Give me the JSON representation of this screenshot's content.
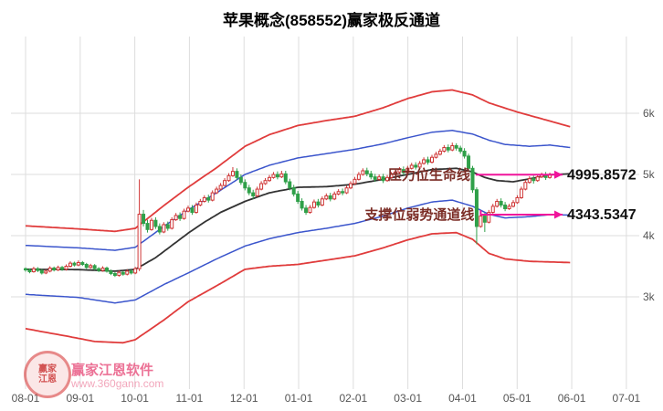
{
  "title": "苹果概念(858552)赢家极反通道",
  "watermark": {
    "brand": "赢家江恩软件",
    "url": "www.360gann.com",
    "logo_line1": "赢家",
    "logo_line2": "江恩"
  },
  "chart_data": {
    "type": "candlestick",
    "title": "苹果概念(858552)赢家极反通道",
    "xlabel": "",
    "ylabel": "",
    "ylim": [
      2250,
      6450
    ],
    "x_ticks": [
      "08-01",
      "09-01",
      "10-01",
      "11-01",
      "12-01",
      "01-01",
      "02-01",
      "03-01",
      "04-01",
      "05-01",
      "06-01",
      "07-01"
    ],
    "y_ticks": [
      {
        "label": "3k",
        "value": 3000
      },
      {
        "label": "4k",
        "value": 4000
      },
      {
        "label": "5k",
        "value": 5000
      },
      {
        "label": "6k",
        "value": 6000
      }
    ],
    "candles_per_month": 13.44,
    "colors": {
      "up": "#cf3535",
      "down": "#2fa049",
      "grid": "#dddddd",
      "axis_text": "#555555"
    },
    "candles": [
      [
        3460,
        3480,
        3410,
        3440
      ],
      [
        3440,
        3465,
        3385,
        3410
      ],
      [
        3410,
        3490,
        3395,
        3460
      ],
      [
        3460,
        3485,
        3405,
        3430
      ],
      [
        3430,
        3455,
        3365,
        3390
      ],
      [
        3390,
        3450,
        3370,
        3420
      ],
      [
        3420,
        3500,
        3400,
        3470
      ],
      [
        3470,
        3495,
        3415,
        3440
      ],
      [
        3440,
        3510,
        3420,
        3480
      ],
      [
        3480,
        3505,
        3425,
        3450
      ],
      [
        3450,
        3530,
        3430,
        3500
      ],
      [
        3500,
        3580,
        3480,
        3550
      ],
      [
        3550,
        3575,
        3495,
        3520
      ],
      [
        3520,
        3595,
        3500,
        3560
      ],
      [
        3560,
        3585,
        3505,
        3530
      ],
      [
        3530,
        3555,
        3455,
        3480
      ],
      [
        3480,
        3540,
        3460,
        3510
      ],
      [
        3510,
        3535,
        3435,
        3460
      ],
      [
        3460,
        3485,
        3405,
        3430
      ],
      [
        3430,
        3500,
        3410,
        3470
      ],
      [
        3470,
        3495,
        3395,
        3420
      ],
      [
        3420,
        3445,
        3355,
        3380
      ],
      [
        3380,
        3405,
        3325,
        3350
      ],
      [
        3350,
        3430,
        3330,
        3400
      ],
      [
        3400,
        3425,
        3345,
        3370
      ],
      [
        3370,
        3450,
        3350,
        3420
      ],
      [
        3420,
        3445,
        3365,
        3390
      ],
      [
        3390,
        3490,
        3370,
        3460
      ],
      [
        3460,
        4920,
        3420,
        4350
      ],
      [
        4350,
        4420,
        4150,
        4200
      ],
      [
        4200,
        4260,
        4050,
        4100
      ],
      [
        4100,
        4290,
        4080,
        4250
      ],
      [
        4250,
        4300,
        4110,
        4150
      ],
      [
        4150,
        4200,
        4020,
        4060
      ],
      [
        4060,
        4220,
        4040,
        4180
      ],
      [
        4180,
        4230,
        4080,
        4120
      ],
      [
        4120,
        4300,
        4100,
        4260
      ],
      [
        4260,
        4370,
        4240,
        4330
      ],
      [
        4330,
        4380,
        4240,
        4280
      ],
      [
        4280,
        4440,
        4260,
        4400
      ],
      [
        4400,
        4490,
        4380,
        4450
      ],
      [
        4450,
        4500,
        4340,
        4380
      ],
      [
        4380,
        4540,
        4360,
        4500
      ],
      [
        4500,
        4600,
        4480,
        4560
      ],
      [
        4560,
        4660,
        4540,
        4620
      ],
      [
        4620,
        4670,
        4540,
        4580
      ],
      [
        4580,
        4740,
        4560,
        4700
      ],
      [
        4700,
        4800,
        4680,
        4760
      ],
      [
        4760,
        4860,
        4740,
        4820
      ],
      [
        4820,
        4940,
        4800,
        4900
      ],
      [
        4900,
        5020,
        4880,
        4980
      ],
      [
        4980,
        5120,
        4960,
        5050
      ],
      [
        5050,
        5100,
        4910,
        4950
      ],
      [
        4950,
        5000,
        4830,
        4870
      ],
      [
        4870,
        4920,
        4740,
        4780
      ],
      [
        4780,
        4830,
        4660,
        4700
      ],
      [
        4700,
        4750,
        4600,
        4650
      ],
      [
        4650,
        4800,
        4630,
        4760
      ],
      [
        4760,
        4890,
        4740,
        4850
      ],
      [
        4850,
        4940,
        4830,
        4900
      ],
      [
        4900,
        4990,
        4880,
        4950
      ],
      [
        4950,
        5040,
        4930,
        5000
      ],
      [
        5000,
        5050,
        4920,
        4960
      ],
      [
        4960,
        5060,
        4940,
        5010
      ],
      [
        5010,
        5060,
        4840,
        4880
      ],
      [
        4880,
        4930,
        4740,
        4780
      ],
      [
        4780,
        4830,
        4640,
        4680
      ],
      [
        4680,
        4730,
        4520,
        4560
      ],
      [
        4560,
        4610,
        4410,
        4450
      ],
      [
        4450,
        4500,
        4340,
        4380
      ],
      [
        4380,
        4500,
        4360,
        4460
      ],
      [
        4460,
        4590,
        4440,
        4550
      ],
      [
        4550,
        4600,
        4460,
        4500
      ],
      [
        4500,
        4640,
        4480,
        4600
      ],
      [
        4600,
        4690,
        4580,
        4650
      ],
      [
        4650,
        4700,
        4560,
        4600
      ],
      [
        4600,
        4720,
        4580,
        4680
      ],
      [
        4680,
        4760,
        4660,
        4720
      ],
      [
        4720,
        4770,
        4660,
        4700
      ],
      [
        4700,
        4820,
        4680,
        4780
      ],
      [
        4780,
        4890,
        4760,
        4850
      ],
      [
        4850,
        4960,
        4830,
        4920
      ],
      [
        4920,
        5040,
        4900,
        5000
      ],
      [
        5000,
        5100,
        4980,
        5060
      ],
      [
        5060,
        5110,
        4970,
        5010
      ],
      [
        5010,
        5060,
        4920,
        4960
      ],
      [
        4960,
        5010,
        4880,
        4920
      ],
      [
        4920,
        5000,
        4900,
        4960
      ],
      [
        4960,
        5010,
        4860,
        4900
      ],
      [
        4900,
        4990,
        4880,
        4950
      ],
      [
        4950,
        5040,
        4930,
        5000
      ],
      [
        5000,
        5080,
        4980,
        5040
      ],
      [
        5040,
        5120,
        5020,
        5080
      ],
      [
        5080,
        5130,
        4990,
        5030
      ],
      [
        5030,
        5140,
        5010,
        5100
      ],
      [
        5100,
        5190,
        5080,
        5150
      ],
      [
        5150,
        5200,
        5080,
        5120
      ],
      [
        5120,
        5220,
        5100,
        5180
      ],
      [
        5180,
        5280,
        5160,
        5240
      ],
      [
        5240,
        5290,
        5160,
        5200
      ],
      [
        5200,
        5320,
        5180,
        5280
      ],
      [
        5280,
        5370,
        5260,
        5330
      ],
      [
        5330,
        5420,
        5310,
        5380
      ],
      [
        5380,
        5480,
        5360,
        5440
      ],
      [
        5440,
        5490,
        5360,
        5400
      ],
      [
        5400,
        5520,
        5380,
        5470
      ],
      [
        5470,
        5510,
        5390,
        5430
      ],
      [
        5430,
        5470,
        5340,
        5380
      ],
      [
        5380,
        5430,
        5260,
        5300
      ],
      [
        5300,
        5340,
        5050,
        5100
      ],
      [
        5100,
        5140,
        4700,
        4750
      ],
      [
        4750,
        4790,
        3860,
        4150
      ],
      [
        4150,
        4360,
        4130,
        4320
      ],
      [
        4320,
        4370,
        4060,
        4220
      ],
      [
        4220,
        4420,
        4200,
        4380
      ],
      [
        4380,
        4520,
        4360,
        4480
      ],
      [
        4480,
        4600,
        4460,
        4560
      ],
      [
        4560,
        4610,
        4460,
        4500
      ],
      [
        4500,
        4550,
        4400,
        4440
      ],
      [
        4440,
        4520,
        4420,
        4480
      ],
      [
        4480,
        4580,
        4460,
        4540
      ],
      [
        4540,
        4660,
        4520,
        4620
      ],
      [
        4620,
        4800,
        4600,
        4760
      ],
      [
        4760,
        4910,
        4740,
        4870
      ],
      [
        4870,
        4970,
        4850,
        4930
      ],
      [
        4930,
        4980,
        4850,
        4900
      ],
      [
        4900,
        5000,
        4880,
        4960
      ],
      [
        4960,
        5030,
        4940,
        4990
      ],
      [
        4990,
        5040,
        4910,
        4950
      ],
      [
        4950,
        5030,
        4930,
        4996
      ]
    ],
    "channels": [
      {
        "name": "red_upper",
        "color": "#e03c3c",
        "width": 1.8,
        "knots": [
          [
            0,
            4160
          ],
          [
            13,
            4110
          ],
          [
            22,
            4070
          ],
          [
            27,
            4120
          ],
          [
            34,
            4490
          ],
          [
            40,
            4790
          ],
          [
            47,
            5110
          ],
          [
            54,
            5460
          ],
          [
            60,
            5650
          ],
          [
            67,
            5800
          ],
          [
            74,
            5880
          ],
          [
            81,
            5950
          ],
          [
            88,
            6090
          ],
          [
            94,
            6240
          ],
          [
            100,
            6350
          ],
          [
            105,
            6380
          ],
          [
            110,
            6300
          ],
          [
            114,
            6170
          ],
          [
            121,
            6020
          ],
          [
            127,
            5910
          ],
          [
            134,
            5780
          ]
        ]
      },
      {
        "name": "blue_upper",
        "color": "#3b55cc",
        "width": 1.5,
        "knots": [
          [
            0,
            3840
          ],
          [
            13,
            3800
          ],
          [
            22,
            3760
          ],
          [
            27,
            3810
          ],
          [
            34,
            4150
          ],
          [
            40,
            4420
          ],
          [
            47,
            4700
          ],
          [
            54,
            5000
          ],
          [
            60,
            5150
          ],
          [
            67,
            5270
          ],
          [
            74,
            5340
          ],
          [
            81,
            5410
          ],
          [
            88,
            5500
          ],
          [
            94,
            5600
          ],
          [
            100,
            5690
          ],
          [
            105,
            5720
          ],
          [
            110,
            5660
          ],
          [
            114,
            5560
          ],
          [
            118,
            5490
          ],
          [
            124,
            5460
          ],
          [
            129,
            5480
          ],
          [
            134,
            5440
          ]
        ]
      },
      {
        "name": "center",
        "color": "#333333",
        "width": 1.8,
        "knots": [
          [
            0,
            3450
          ],
          [
            13,
            3445
          ],
          [
            22,
            3420
          ],
          [
            27,
            3450
          ],
          [
            32,
            3640
          ],
          [
            36,
            3840
          ],
          [
            40,
            4040
          ],
          [
            44,
            4220
          ],
          [
            48,
            4380
          ],
          [
            54,
            4560
          ],
          [
            60,
            4700
          ],
          [
            67,
            4790
          ],
          [
            74,
            4800
          ],
          [
            81,
            4840
          ],
          [
            88,
            4920
          ],
          [
            94,
            5000
          ],
          [
            100,
            5080
          ],
          [
            106,
            5100
          ],
          [
            110,
            5040
          ],
          [
            113,
            4950
          ],
          [
            116,
            4900
          ],
          [
            120,
            4880
          ],
          [
            125,
            4940
          ],
          [
            129,
            4996
          ],
          [
            134,
            5010
          ]
        ]
      },
      {
        "name": "blue_lower",
        "color": "#3b55cc",
        "width": 1.5,
        "knots": [
          [
            0,
            3040
          ],
          [
            13,
            2990
          ],
          [
            22,
            2900
          ],
          [
            27,
            2950
          ],
          [
            34,
            3200
          ],
          [
            40,
            3390
          ],
          [
            47,
            3620
          ],
          [
            54,
            3830
          ],
          [
            60,
            3950
          ],
          [
            67,
            4050
          ],
          [
            74,
            4120
          ],
          [
            81,
            4200
          ],
          [
            88,
            4320
          ],
          [
            94,
            4450
          ],
          [
            100,
            4550
          ],
          [
            105,
            4580
          ],
          [
            110,
            4480
          ],
          [
            114,
            4350
          ],
          [
            118,
            4290
          ],
          [
            124,
            4310
          ],
          [
            129,
            4343
          ],
          [
            134,
            4335
          ]
        ]
      },
      {
        "name": "red_lower",
        "color": "#e03c3c",
        "width": 1.8,
        "knots": [
          [
            0,
            2480
          ],
          [
            10,
            2360
          ],
          [
            17,
            2270
          ],
          [
            24,
            2250
          ],
          [
            27,
            2300
          ],
          [
            34,
            2620
          ],
          [
            40,
            2920
          ],
          [
            47,
            3180
          ],
          [
            54,
            3450
          ],
          [
            60,
            3500
          ],
          [
            67,
            3530
          ],
          [
            74,
            3600
          ],
          [
            81,
            3670
          ],
          [
            88,
            3800
          ],
          [
            94,
            3930
          ],
          [
            100,
            4030
          ],
          [
            106,
            4050
          ],
          [
            110,
            3940
          ],
          [
            114,
            3710
          ],
          [
            118,
            3620
          ],
          [
            124,
            3580
          ],
          [
            129,
            3570
          ],
          [
            134,
            3560
          ]
        ]
      }
    ],
    "annotations": [
      {
        "id": "pressure",
        "label": "压力位生命线",
        "value_text": "4995.8572",
        "value": 4995.8572,
        "anchor_index": 111,
        "anchor_channel": "center",
        "arrow_color": "#f0149b",
        "label_color": "#7b2d26",
        "value_color": "#111111"
      },
      {
        "id": "support",
        "label": "支撑位弱势通道线",
        "value_text": "4343.5347",
        "value": 4343.5347,
        "anchor_index": 112,
        "anchor_channel": "blue_lower",
        "arrow_color": "#f0149b",
        "label_color": "#7b2d26",
        "value_color": "#111111"
      }
    ],
    "legend": null,
    "grid": true
  }
}
